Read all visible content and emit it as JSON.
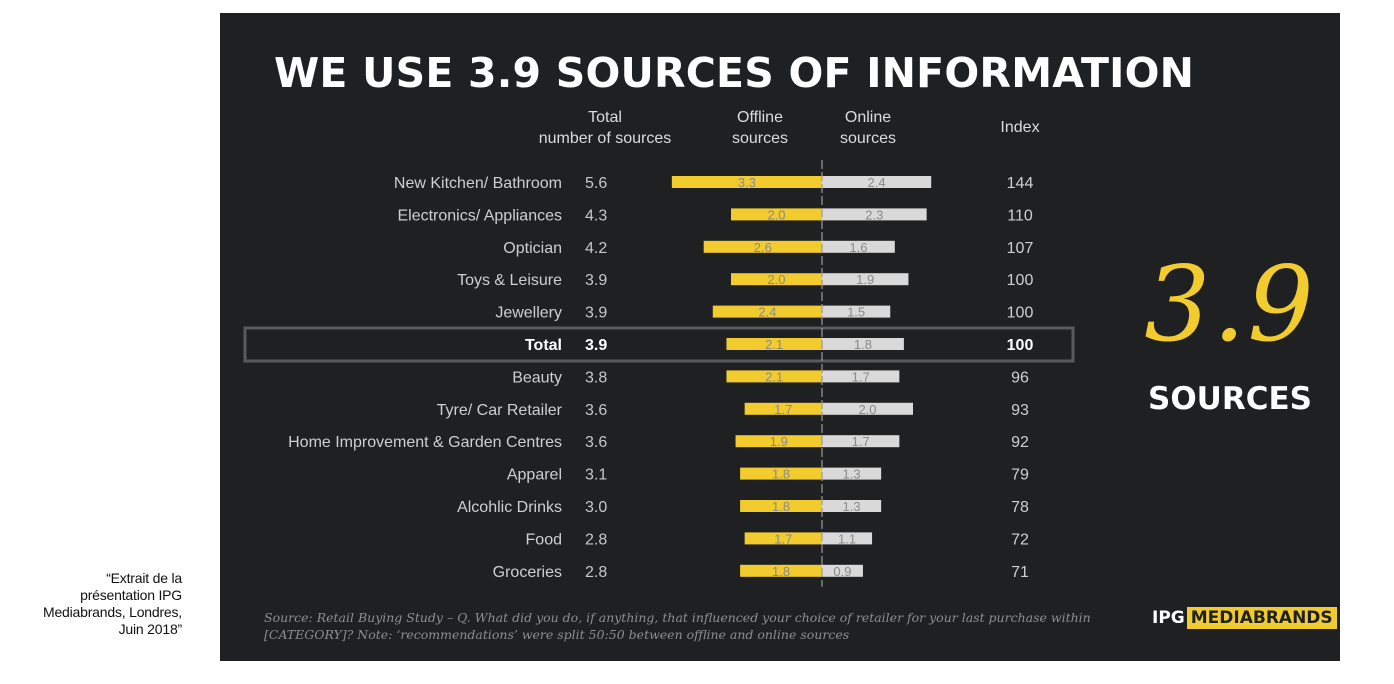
{
  "caption": [
    "“Extrait de la",
    "présentation IPG",
    "Mediabrands, Londres,",
    "Juin 2018”"
  ],
  "title": "WE USE 3.9 SOURCES OF INFORMATION",
  "headers": {
    "total": [
      "Total",
      "number of sources"
    ],
    "offline": [
      "Offline",
      "sources"
    ],
    "online": [
      "Online",
      "sources"
    ],
    "index": "Index"
  },
  "callout": {
    "number": "3.9",
    "label": "SOURCES"
  },
  "footnote": "Source: Retail Buying Study – Q. What did you do, if anything, that influenced your choice of retailer for your last purchase within [CATEGORY]? Note: ‘recommendations’ were split 50:50 between offline and online sources",
  "logo": {
    "prefix": "IPG",
    "highlight": "MEDIABRANDS"
  },
  "colors": {
    "offline": "#f2cc2e",
    "online": "#d9d9d9",
    "background": "#1f2022",
    "highlight_box": "#5a5a5a"
  },
  "chart_data": {
    "type": "bar",
    "orientation": "horizontal-diverging",
    "highlighted_category": "Total",
    "categories": [
      "New Kitchen/ Bathroom",
      "Electronics/ Appliances",
      "Optician",
      "Toys & Leisure",
      "Jewellery",
      "Total",
      "Beauty",
      "Tyre/ Car Retailer",
      "Home Improvement & Garden Centres",
      "Apparel",
      "Alcohlic Drinks",
      "Food",
      "Groceries"
    ],
    "total": [
      "5.6",
      "4.3",
      "4.2",
      "3.9",
      "3.9",
      "3.9",
      "3.8",
      "3.6",
      "3.6",
      "3.1",
      "3.0",
      "2.8",
      "2.8"
    ],
    "series": [
      {
        "name": "Offline sources",
        "values": [
          "3.3",
          "2.0",
          "2.6",
          "2.0",
          "2.4",
          "2.1",
          "2.1",
          "1.7",
          "1.9",
          "1.8",
          "1.8",
          "1.7",
          "1.8"
        ]
      },
      {
        "name": "Online sources",
        "values": [
          "2.4",
          "2.3",
          "1.6",
          "1.9",
          "1.5",
          "1.8",
          "1.7",
          "2.0",
          "1.7",
          "1.3",
          "1.3",
          "1.1",
          "0.9"
        ]
      }
    ],
    "index": [
      "144",
      "110",
      "107",
      "100",
      "100",
      "100",
      "96",
      "93",
      "92",
      "79",
      "78",
      "72",
      "71"
    ]
  }
}
